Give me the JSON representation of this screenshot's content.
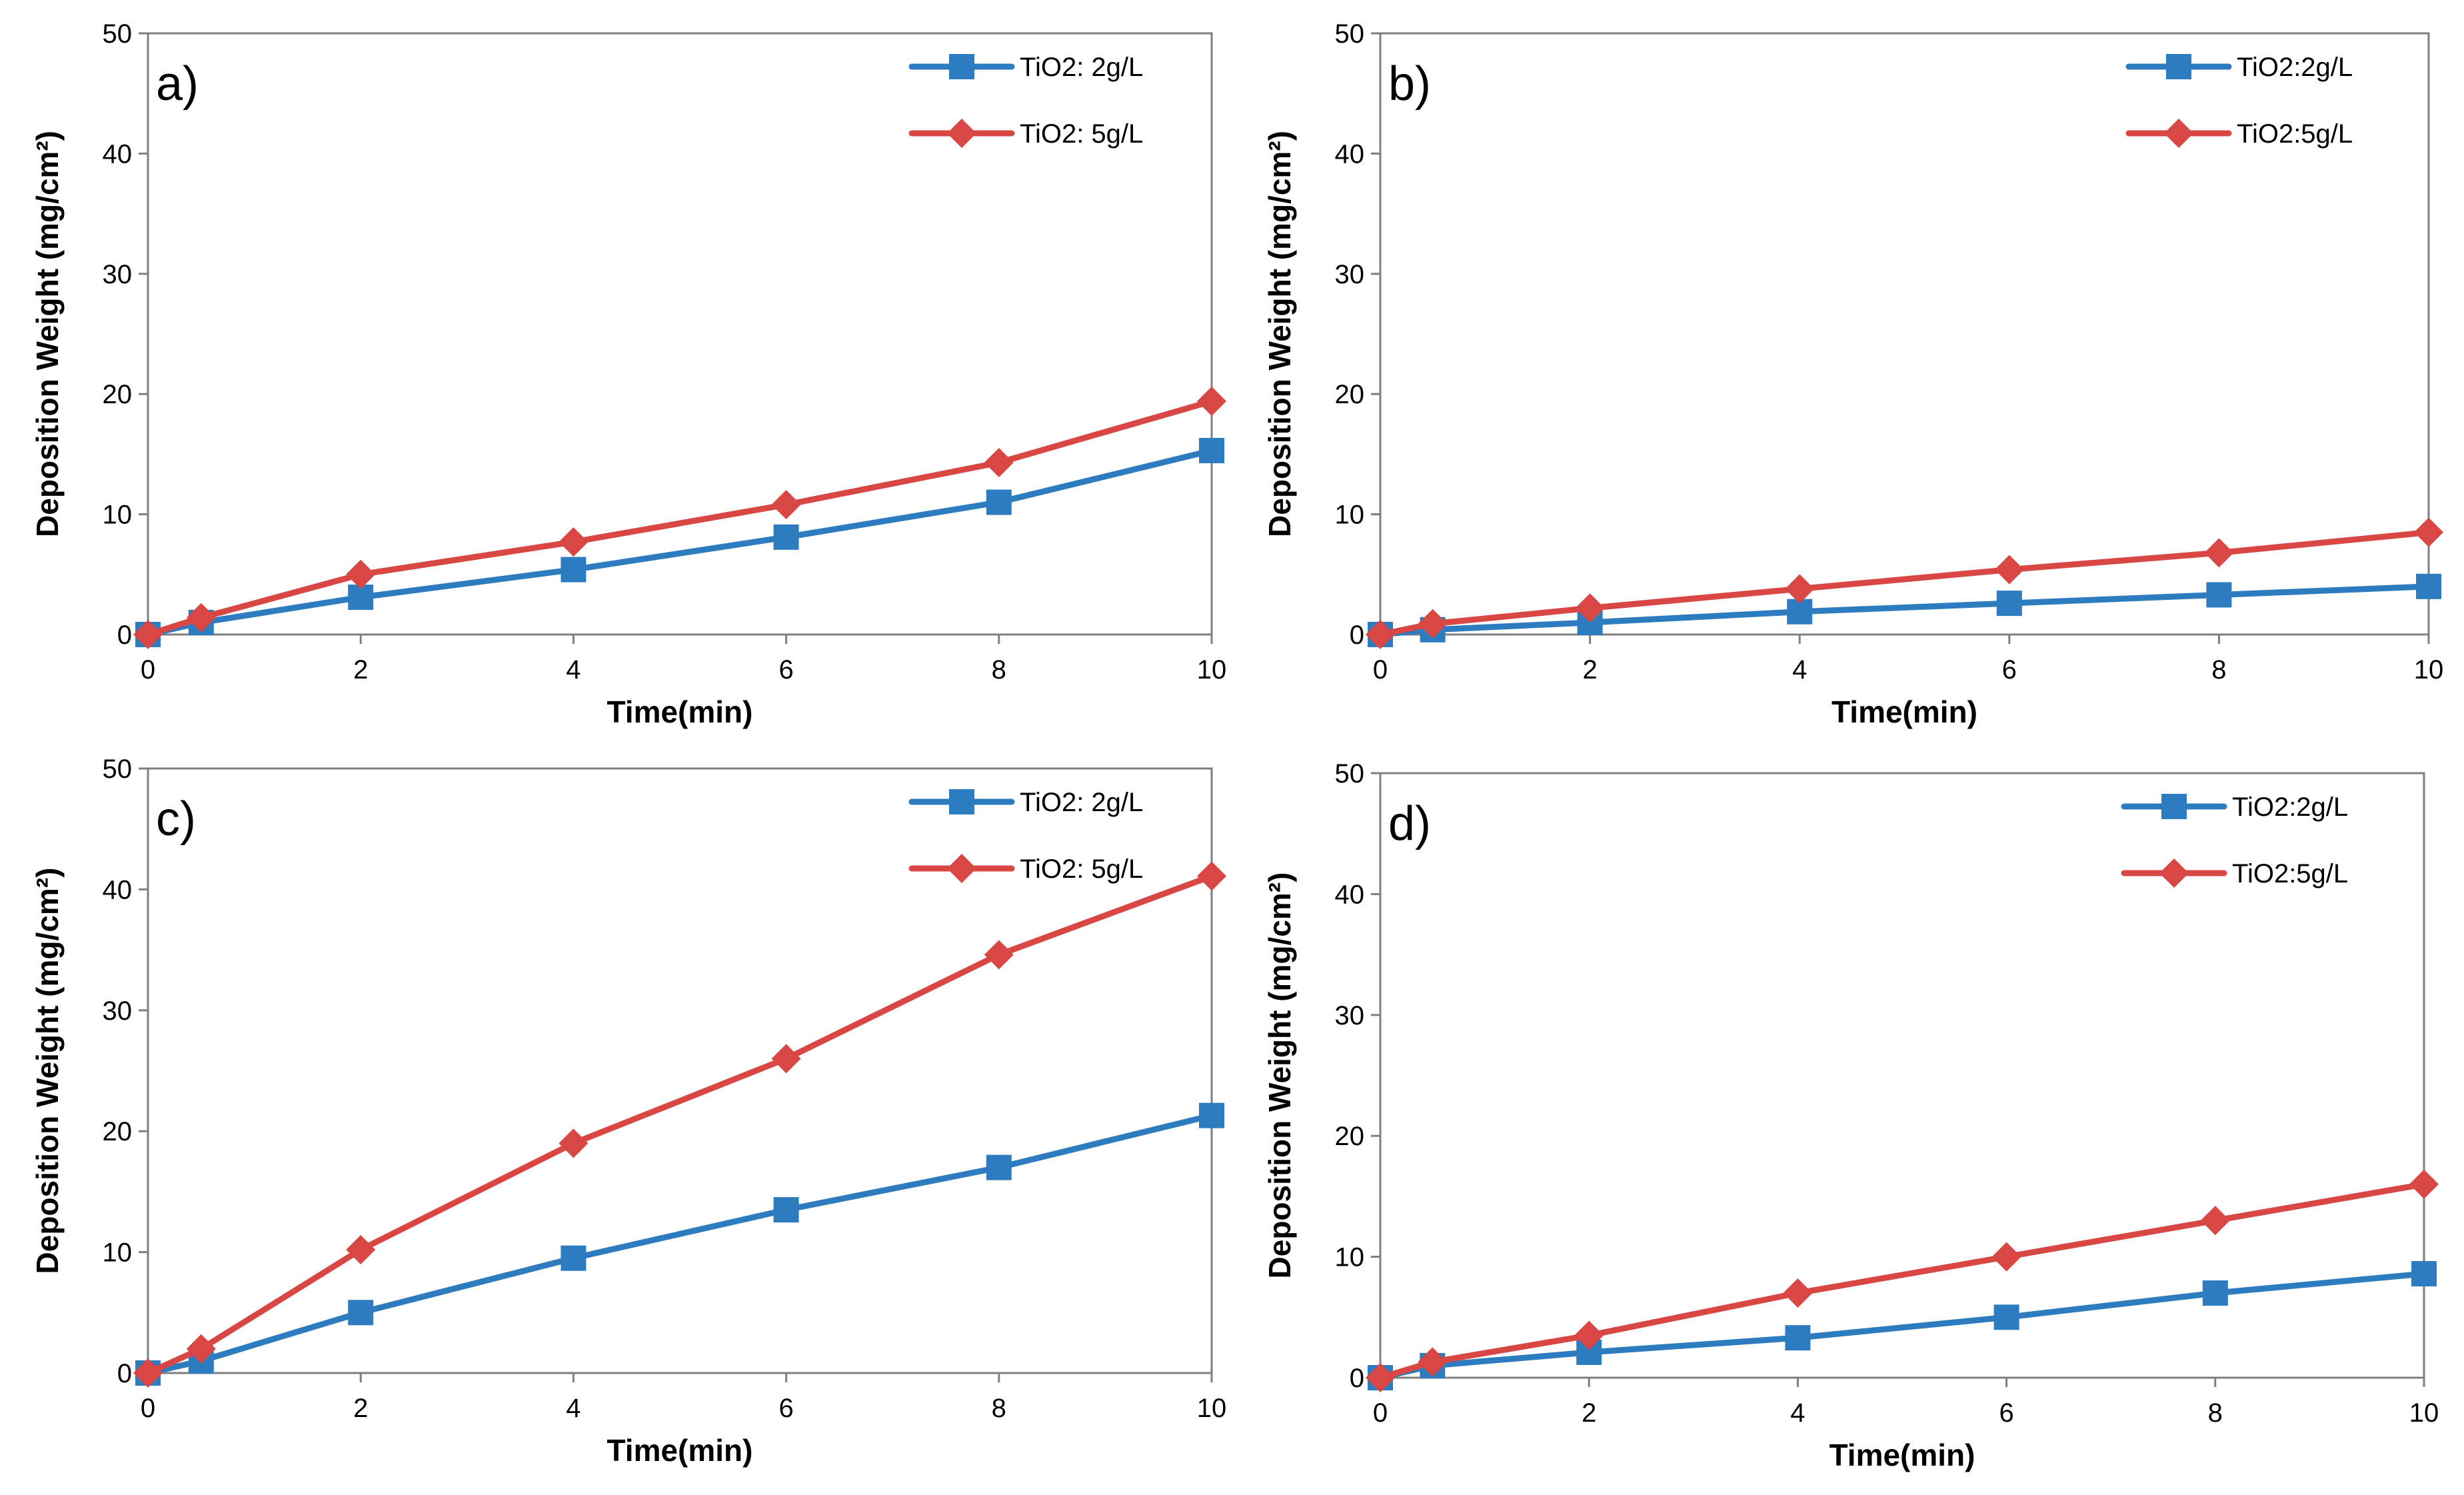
{
  "chart_data": [
    {
      "type": "line",
      "panel_label": "a)",
      "xlabel": "Time(min)",
      "ylabel": "Deposition Weight (mg/cm²)",
      "xlim": [
        0,
        10
      ],
      "ylim": [
        0,
        50
      ],
      "xticks": [
        0,
        2,
        4,
        6,
        8,
        10
      ],
      "yticks": [
        0,
        10,
        20,
        30,
        40,
        50
      ],
      "legend_position": "top-right",
      "series": [
        {
          "name": "TiO2: 2g/L",
          "color": "#2e7cc0",
          "marker": "square",
          "x": [
            0,
            0.5,
            2,
            4,
            6,
            8,
            10
          ],
          "y": [
            0,
            1,
            3.1,
            5.4,
            8.1,
            11.0,
            15.3
          ]
        },
        {
          "name": "TiO2: 5g/L",
          "color": "#d94744",
          "marker": "diamond",
          "x": [
            0,
            0.5,
            2,
            4,
            6,
            8,
            10
          ],
          "y": [
            0,
            1.4,
            5.0,
            7.7,
            10.8,
            14.3,
            19.4
          ]
        }
      ]
    },
    {
      "type": "line",
      "panel_label": "b)",
      "xlabel": "Time(min)",
      "ylabel": "Deposition Weight (mg/cm²)",
      "xlim": [
        0,
        10
      ],
      "ylim": [
        0,
        50
      ],
      "xticks": [
        0,
        2,
        4,
        6,
        8,
        10
      ],
      "yticks": [
        0,
        10,
        20,
        30,
        40,
        50
      ],
      "legend_position": "top-right",
      "series": [
        {
          "name": "TiO2:2g/L",
          "color": "#2e7cc0",
          "marker": "square",
          "x": [
            0,
            0.5,
            2,
            4,
            6,
            8,
            10
          ],
          "y": [
            0,
            0.4,
            1.0,
            1.9,
            2.6,
            3.3,
            4.0
          ]
        },
        {
          "name": "TiO2:5g/L",
          "color": "#d94744",
          "marker": "diamond",
          "x": [
            0,
            0.5,
            2,
            4,
            6,
            8,
            10
          ],
          "y": [
            0,
            0.9,
            2.2,
            3.8,
            5.4,
            6.8,
            8.5
          ]
        }
      ]
    },
    {
      "type": "line",
      "panel_label": "c)",
      "xlabel": "Time(min)",
      "ylabel": "Deposition Weight (mg/cm²)",
      "xlim": [
        0,
        10
      ],
      "ylim": [
        0,
        50
      ],
      "xticks": [
        0,
        2,
        4,
        6,
        8,
        10
      ],
      "yticks": [
        0,
        10,
        20,
        30,
        40,
        50
      ],
      "legend_position": "top-right",
      "series": [
        {
          "name": "TiO2: 2g/L",
          "color": "#2e7cc0",
          "marker": "square",
          "x": [
            0,
            0.5,
            2,
            4,
            6,
            8,
            10
          ],
          "y": [
            0,
            1.0,
            5.0,
            9.5,
            13.5,
            17.0,
            21.3
          ]
        },
        {
          "name": "TiO2: 5g/L",
          "color": "#d94744",
          "marker": "diamond",
          "x": [
            0,
            0.5,
            2,
            4,
            6,
            8,
            10
          ],
          "y": [
            0,
            2.0,
            10.2,
            19.0,
            26.0,
            34.6,
            41.1
          ]
        }
      ]
    },
    {
      "type": "line",
      "panel_label": "d)",
      "xlabel": "Time(min)",
      "ylabel": "Deposition Weight (mg/cm²)",
      "xlim": [
        0,
        10
      ],
      "ylim": [
        0,
        50
      ],
      "xticks": [
        0,
        2,
        4,
        6,
        8,
        10
      ],
      "yticks": [
        0,
        10,
        20,
        30,
        40,
        50
      ],
      "legend_position": "top-right",
      "series": [
        {
          "name": "TiO2:2g/L",
          "color": "#2e7cc0",
          "marker": "square",
          "x": [
            0,
            0.5,
            2,
            4,
            6,
            8,
            10
          ],
          "y": [
            0,
            1.0,
            2.1,
            3.3,
            5.0,
            7.0,
            8.6
          ]
        },
        {
          "name": "TiO2:5g/L",
          "color": "#d94744",
          "marker": "diamond",
          "x": [
            0,
            0.5,
            2,
            4,
            6,
            8,
            10
          ],
          "y": [
            0,
            1.3,
            3.5,
            7.0,
            10.0,
            13.0,
            16.0
          ]
        }
      ]
    }
  ]
}
